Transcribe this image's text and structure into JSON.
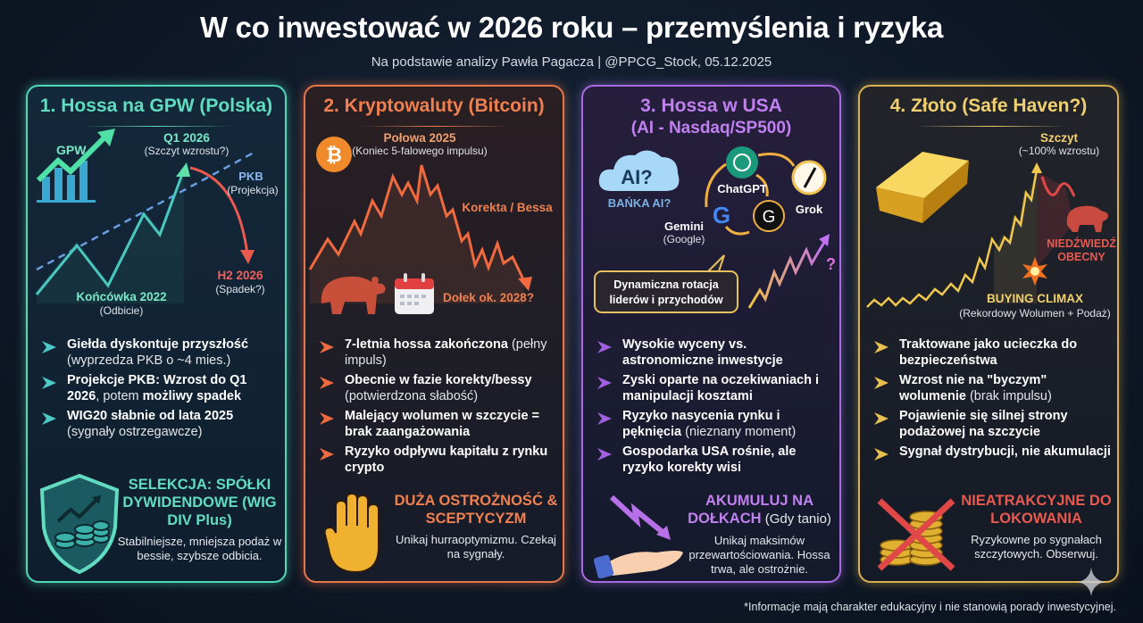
{
  "header": {
    "title": "W co inwestować w 2026 roku – przemyślenia i ryzyka",
    "subtitle": "Na podstawie analizy Pawła Pagacza | @PPCG_Stock, 05.12.2025"
  },
  "colors": {
    "teal": "#62dcc0",
    "orange": "#f08050",
    "purple": "#c080f0",
    "gold": "#f0d070",
    "red": "#e85a50",
    "background": "#0d1624"
  },
  "panels": [
    {
      "title": "1. Hossa na GPW (Polska)",
      "chart": {
        "gpw": "GPW",
        "peak": "Q1 2026",
        "peak_note": "(Szczyt wzrostu?)",
        "gdp": "PKB",
        "gdp_note": "(Projekcja)",
        "drop": "H2 2026",
        "drop_note": "(Spadek?)",
        "low": "Końcówka 2022",
        "low_note": "(Odbicie)"
      },
      "bullets": [
        [
          {
            "t": "Giełda dyskontuje przyszłość",
            "b": true
          },
          {
            "t": " (wyprzedza PKB o ~4 mies.)",
            "b": false
          }
        ],
        [
          {
            "t": "Projekcje PKB: Wzrost do Q1 2026",
            "b": true
          },
          {
            "t": ", potem ",
            "b": false
          },
          {
            "t": "możliwy spadek",
            "b": true
          }
        ],
        [
          {
            "t": "WIG20 słabnie od lata 2025",
            "b": true
          },
          {
            "t": " (sygnały ostrzegawcze)",
            "b": false
          }
        ]
      ],
      "bottom": {
        "heading": "SELEKCJA: SPÓŁKI DYWIDENDOWE (WIG DIV Plus)",
        "text": "Stabilniejsze, mniejsza podaż w bessie, szybsze odbicia.",
        "icon": "shield-coins-icon"
      }
    },
    {
      "title": "2. Kryptowaluty (Bitcoin)",
      "chart": {
        "peak": "Połowa 2025",
        "peak_note": "(Koniec 5-falowego impulsu)",
        "phase": "Korekta / Bessa",
        "bottom": "Dołek ok. 2028?",
        "icon_symbol": "₿"
      },
      "bullets": [
        [
          {
            "t": "7-letnia hossa zakończona",
            "b": true
          },
          {
            "t": " (pełny impuls)",
            "b": false
          }
        ],
        [
          {
            "t": "Obecnie w fazie korekty/bessy",
            "b": true
          },
          {
            "t": " (potwierdzona słabość)",
            "b": false
          }
        ],
        [
          {
            "t": "Malejący wolumen w szczycie = brak zaangażowania",
            "b": true
          }
        ],
        [
          {
            "t": "Ryzyko odpływu kapitału z rynku crypto",
            "b": true
          }
        ]
      ],
      "bottom": {
        "heading": "DUŻA OSTROŻNOŚĆ & SCEPTYCYZM",
        "text": "Unikaj hurraoptymizmu. Czekaj na sygnały.",
        "icon": "stop-hand-icon"
      }
    },
    {
      "title": "3. Hossa w USA",
      "title2": "(AI - Nasdaq/SP500)",
      "chart": {
        "cloud": "AI?",
        "bubble": "BAŃKA AI?",
        "chatgpt": "ChatGPT",
        "grok": "Grok",
        "gemini": "Gemini",
        "gemini_note": "(Google)",
        "callout": "Dynamiczna rotacja liderów i przychodów",
        "question": "?",
        "g_letter": "G"
      },
      "bullets": [
        [
          {
            "t": "Wysokie wyceny vs. astronomiczne inwestycje",
            "b": true
          }
        ],
        [
          {
            "t": "Zyski oparte na oczekiwaniach i manipulacji kosztami",
            "b": true
          }
        ],
        [
          {
            "t": "Ryzyko nasycenia rynku i pęknięcia",
            "b": true
          },
          {
            "t": " (nieznany moment)",
            "b": false
          }
        ],
        [
          {
            "t": "Gospodarka USA rośnie, ale ryzyko korekty wisi",
            "b": true
          }
        ]
      ],
      "bottom": {
        "heading": "AKUMULUJ NA DOŁKACH",
        "heading_note": " (Gdy tanio)",
        "text": "Unikaj maksimów przewartościowania. Hossa trwa, ale ostrożnie.",
        "icon": "buy-the-dip-hand-icon"
      }
    },
    {
      "title": "4. Złoto (Safe Haven?)",
      "chart": {
        "peak": "Szczyt",
        "peak_note": "(~100% wzrostu)",
        "bear": "NIEDŹWIEDŹ",
        "bear2": "OBECNY",
        "climax": "BUYING CLIMAX",
        "climax_note": "(Rekordowy Wolumen + Podaż)"
      },
      "bullets": [
        [
          {
            "t": "Traktowane jako ucieczka do bezpieczeństwa",
            "b": true
          }
        ],
        [
          {
            "t": "Wzrost nie na \"byczym\" wolumenie",
            "b": true
          },
          {
            "t": " (brak impulsu)",
            "b": false
          }
        ],
        [
          {
            "t": "Pojawienie się silnej strony podażowej na szczycie",
            "b": true
          }
        ],
        [
          {
            "t": "Sygnał dystrybucji, nie akumulacji",
            "b": true
          }
        ]
      ],
      "bottom": {
        "heading": "NIEATRAKCYJNE DO LOKOWANIA",
        "text": "Ryzykowne po sygnałach szczytowych. Obserwuj.",
        "icon": "crossed-coins-icon"
      }
    }
  ],
  "footnote": "*Informacje mają charakter edukacyjny i nie stanowią porady inwestycyjnej."
}
